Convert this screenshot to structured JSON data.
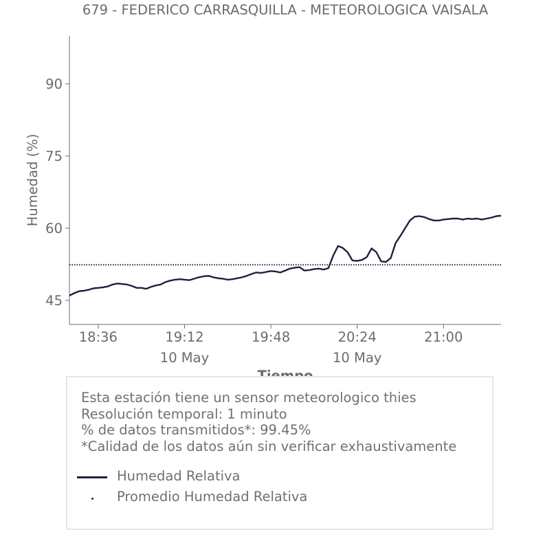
{
  "colors": {
    "series": "#1e1f40",
    "text": "#6b6b6b",
    "axis": "#6b6b6b",
    "box_border": "#e6e6e6"
  },
  "chart_data": {
    "type": "line",
    "title": "679 - FEDERICO CARRASQUILLA - METEOROLOGICA VAISALA",
    "xlabel": "Tiempo",
    "ylabel": "Humedad (%)",
    "ylim": [
      40,
      100
    ],
    "yticks": [
      45,
      60,
      75,
      90
    ],
    "xlim": [
      "18:24",
      "21:24"
    ],
    "xticks": [
      {
        "time": "18:36",
        "label": "18:36",
        "date": ""
      },
      {
        "time": "19:12",
        "label": "19:12",
        "date": "10 May"
      },
      {
        "time": "19:48",
        "label": "19:48",
        "date": ""
      },
      {
        "time": "20:24",
        "label": "20:24",
        "date": "10 May"
      },
      {
        "time": "21:00",
        "label": "21:00",
        "date": ""
      }
    ],
    "grid": false,
    "series": [
      {
        "name": "Humedad Relativa",
        "style": "solid",
        "x": [
          "18:24",
          "18:26",
          "18:28",
          "18:30",
          "18:32",
          "18:34",
          "18:36",
          "18:38",
          "18:40",
          "18:42",
          "18:44",
          "18:46",
          "18:48",
          "18:50",
          "18:52",
          "18:54",
          "18:56",
          "18:58",
          "19:00",
          "19:02",
          "19:04",
          "19:06",
          "19:08",
          "19:10",
          "19:12",
          "19:14",
          "19:16",
          "19:18",
          "19:20",
          "19:22",
          "19:24",
          "19:26",
          "19:28",
          "19:30",
          "19:32",
          "19:34",
          "19:36",
          "19:38",
          "19:40",
          "19:42",
          "19:44",
          "19:46",
          "19:48",
          "19:50",
          "19:52",
          "19:54",
          "19:56",
          "19:58",
          "20:00",
          "20:02",
          "20:04",
          "20:06",
          "20:08",
          "20:10",
          "20:12",
          "20:14",
          "20:16",
          "20:18",
          "20:20",
          "20:22",
          "20:24",
          "20:26",
          "20:28",
          "20:30",
          "20:32",
          "20:34",
          "20:36",
          "20:38",
          "20:40",
          "20:42",
          "20:44",
          "20:46",
          "20:48",
          "20:50",
          "20:52",
          "20:54",
          "20:56",
          "20:58",
          "21:00",
          "21:02",
          "21:04",
          "21:06",
          "21:08",
          "21:10",
          "21:12",
          "21:14",
          "21:16",
          "21:18",
          "21:20",
          "21:22",
          "21:24"
        ],
        "values": [
          46.0,
          46.5,
          46.9,
          47.0,
          47.2,
          47.5,
          47.6,
          47.7,
          47.9,
          48.3,
          48.5,
          48.4,
          48.3,
          48.0,
          47.6,
          47.6,
          47.4,
          47.8,
          48.1,
          48.3,
          48.8,
          49.1,
          49.3,
          49.4,
          49.3,
          49.2,
          49.5,
          49.8,
          50.0,
          50.1,
          49.8,
          49.6,
          49.5,
          49.3,
          49.4,
          49.6,
          49.8,
          50.1,
          50.5,
          50.8,
          50.7,
          50.9,
          51.1,
          51.0,
          50.8,
          51.2,
          51.6,
          51.8,
          51.9,
          51.2,
          51.3,
          51.5,
          51.6,
          51.4,
          51.7,
          54.3,
          56.3,
          55.9,
          55.0,
          53.3,
          53.2,
          53.4,
          54.0,
          55.8,
          55.0,
          53.1,
          53.0,
          53.8,
          56.9,
          58.4,
          60.0,
          61.6,
          62.4,
          62.5,
          62.3,
          61.9,
          61.6,
          61.6,
          61.8,
          61.9,
          62.0,
          62.0,
          61.8,
          62.0,
          61.9,
          62.0,
          61.8,
          62.0,
          62.2,
          62.5,
          62.6
        ]
      },
      {
        "name": "Promedio Humedad Relativa",
        "style": "dotted",
        "x": [
          "18:24",
          "21:24"
        ],
        "values": [
          52.4,
          52.4
        ]
      }
    ],
    "legend_position": "inside-info-box"
  },
  "info": {
    "lines": [
      "Esta estación tiene un sensor meteorologico thies",
      "Resolución temporal: 1 minuto",
      "% de datos transmitidos*: 99.45%",
      "*Calidad de los datos aún sin verificar exhaustivamente"
    ],
    "legend": [
      "Humedad Relativa",
      "Promedio Humedad Relativa"
    ]
  }
}
